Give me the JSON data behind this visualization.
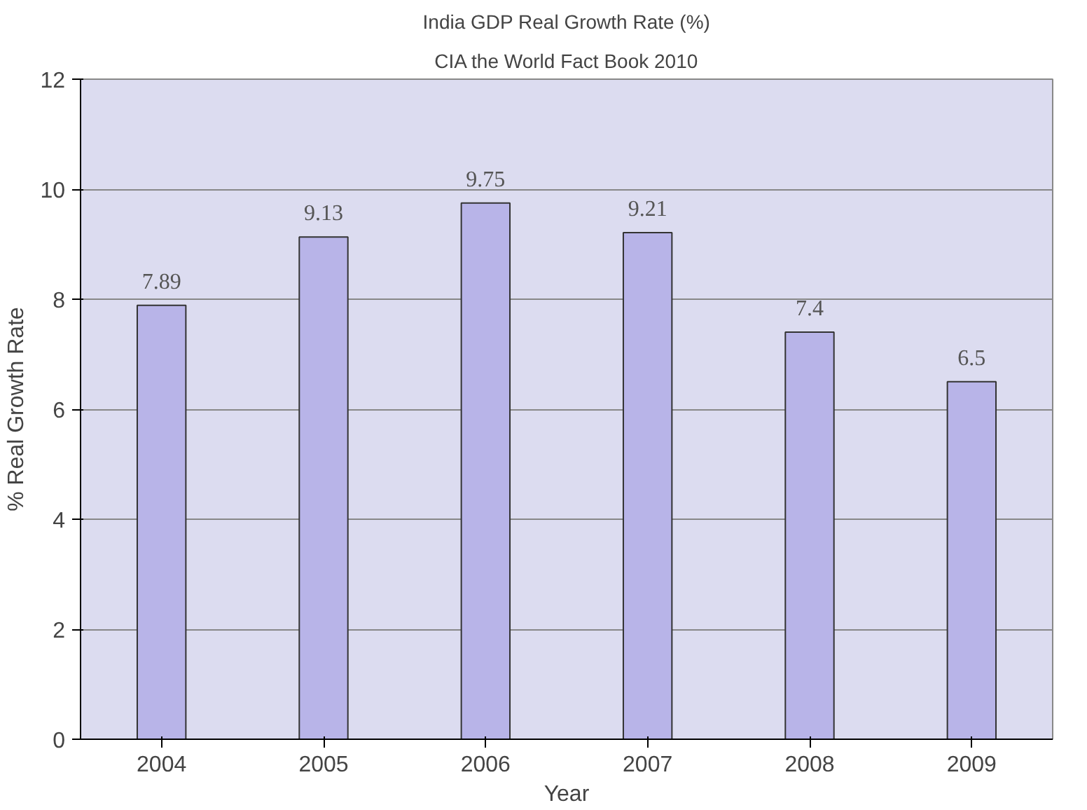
{
  "chart_data": {
    "type": "bar",
    "title": "India GDP Real Growth Rate (%)",
    "subtitle": "CIA the World Fact Book 2010",
    "xlabel": "Year",
    "ylabel": "% Real Growth Rate",
    "categories": [
      "2004",
      "2005",
      "2006",
      "2007",
      "2008",
      "2009"
    ],
    "values": [
      7.89,
      9.13,
      9.75,
      9.21,
      7.4,
      6.5
    ],
    "color": "#b8b4e8",
    "ylim": [
      0,
      12
    ],
    "yticks": [
      0,
      2,
      4,
      6,
      8,
      10,
      12
    ],
    "grid": "y",
    "data_labels": true
  }
}
